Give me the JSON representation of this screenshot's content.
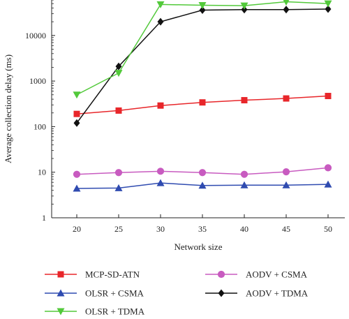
{
  "chart_data": {
    "type": "line",
    "xlabel": "Network size",
    "ylabel": "Average collection delay (ms)",
    "x": [
      20,
      25,
      30,
      35,
      40,
      45,
      50
    ],
    "xlim": [
      17,
      52
    ],
    "xticks": [
      20,
      25,
      30,
      35,
      40,
      45,
      50
    ],
    "y_scale": "log",
    "ylim": [
      1,
      60000
    ],
    "yticks": [
      {
        "value": 1,
        "label": "1"
      },
      {
        "value": 10,
        "label": "10"
      },
      {
        "value": 100,
        "label": "100"
      },
      {
        "value": 1000,
        "label": "1000"
      },
      {
        "value": 10000,
        "label": "10000"
      }
    ],
    "grid": false,
    "legend_position": "bottom",
    "series": [
      {
        "name": "MCP-SD-ATN",
        "color": "#e8262a",
        "marker": "square",
        "values": [
          190,
          225,
          290,
          340,
          380,
          415,
          470
        ]
      },
      {
        "name": "AODV + CSMA",
        "color": "#c85bc0",
        "marker": "circle",
        "values": [
          9,
          9.8,
          10.5,
          9.8,
          9,
          10.2,
          12.5
        ]
      },
      {
        "name": "OLSR + CSMA",
        "color": "#2f4bb0",
        "marker": "triangle-up",
        "values": [
          4.4,
          4.5,
          5.8,
          5.1,
          5.2,
          5.2,
          5.4
        ]
      },
      {
        "name": "AODV + TDMA",
        "color": "#111111",
        "marker": "diamond",
        "values": [
          120,
          2100,
          20000,
          36000,
          37000,
          37000,
          38000
        ]
      },
      {
        "name": "OLSR + TDMA",
        "color": "#52c93a",
        "marker": "triangle-down",
        "values": [
          500,
          1500,
          48000,
          46000,
          45000,
          55000,
          50000
        ]
      }
    ]
  }
}
